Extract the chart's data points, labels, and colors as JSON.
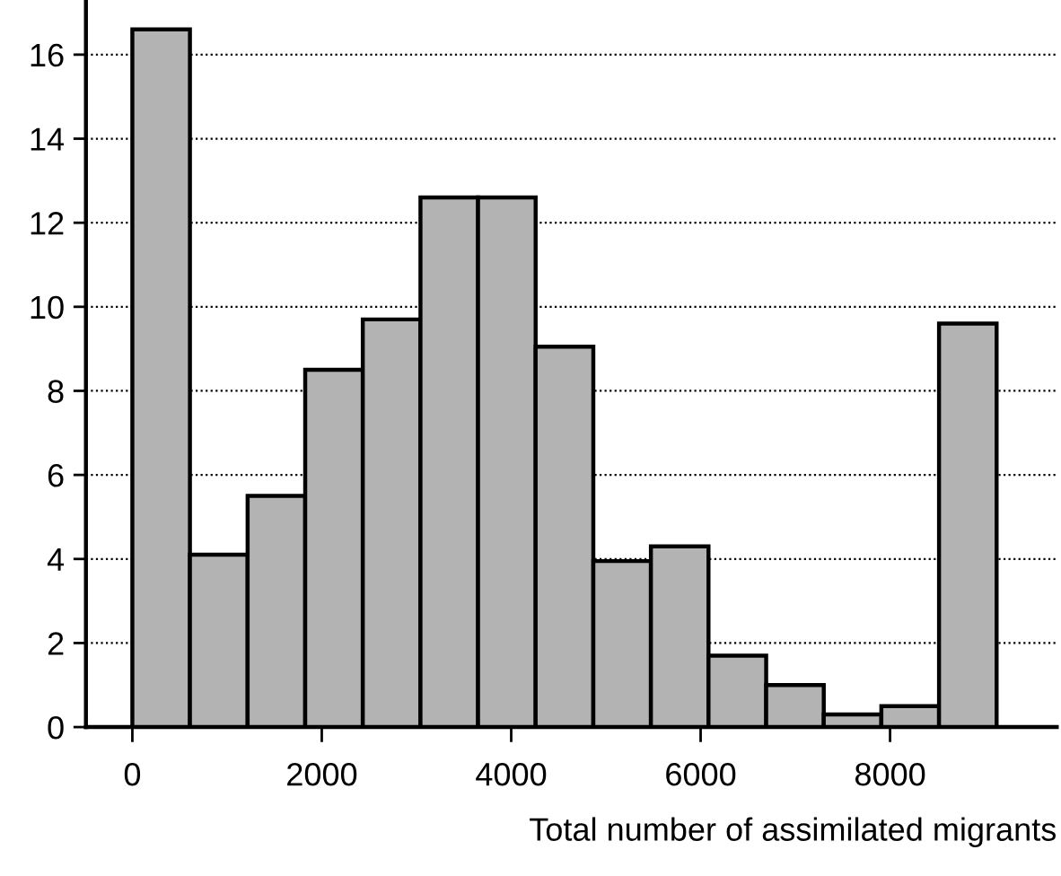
{
  "chart_data": {
    "type": "histogram",
    "xlabel": "Total number of assimilated migrants",
    "bins": [
      0,
      608,
      1217,
      1825,
      2433,
      3042,
      3650,
      4258,
      4867,
      5475,
      6083,
      6692,
      7300,
      7908,
      8517,
      9125
    ],
    "values": [
      16.6,
      4.1,
      5.5,
      8.5,
      9.7,
      12.6,
      12.6,
      9.05,
      3.95,
      4.3,
      1.7,
      1.0,
      0.3,
      0.5,
      9.6
    ],
    "color": "#b3b3b3",
    "xlim": [
      -490,
      9760
    ],
    "xticks": [
      0,
      2000,
      4000,
      6000,
      8000
    ],
    "ylim": [
      0,
      17.3
    ],
    "yticks": [
      0,
      2,
      4,
      6,
      8,
      10,
      12,
      14,
      16
    ],
    "grid": "y"
  }
}
